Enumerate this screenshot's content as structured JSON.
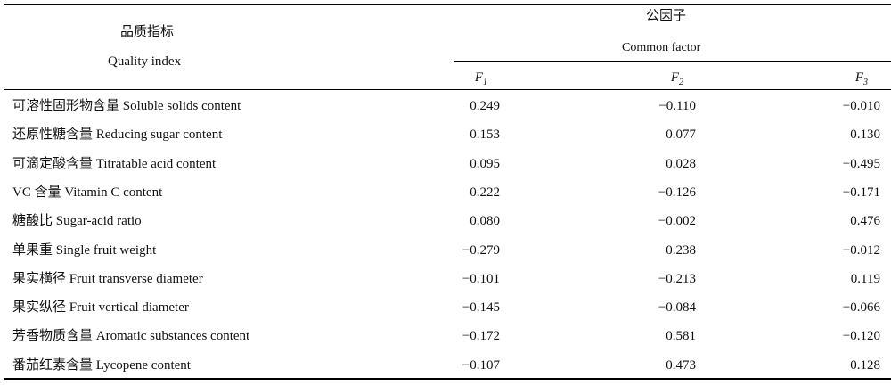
{
  "header": {
    "row_label_zh": "品质指标",
    "row_label_en": "Quality index",
    "group_zh": "公因子",
    "group_en": "Common factor",
    "columns": [
      {
        "letter": "F",
        "sub": "1"
      },
      {
        "letter": "F",
        "sub": "2"
      },
      {
        "letter": "F",
        "sub": "3"
      }
    ]
  },
  "table": {
    "rows": [
      [
        "可溶性固形物含量 Soluble solids content",
        "0.249",
        "−0.110",
        "−0.010"
      ],
      [
        "还原性糖含量 Reducing sugar content",
        "0.153",
        "0.077",
        "0.130"
      ],
      [
        "可滴定酸含量 Titratable acid content",
        "0.095",
        "0.028",
        "−0.495"
      ],
      [
        "VC 含量 Vitamin C content",
        "0.222",
        "−0.126",
        "−0.171"
      ],
      [
        "糖酸比 Sugar-acid ratio",
        "0.080",
        "−0.002",
        "0.476"
      ],
      [
        "单果重 Single fruit weight",
        "−0.279",
        "0.238",
        "−0.012"
      ],
      [
        "果实横径 Fruit transverse diameter",
        "−0.101",
        "−0.213",
        "0.119"
      ],
      [
        "果实纵径 Fruit vertical diameter",
        "−0.145",
        "−0.084",
        "−0.066"
      ],
      [
        "芳香物质含量 Aromatic substances content",
        "−0.172",
        "0.581",
        "−0.120"
      ],
      [
        "番茄红素含量 Lycopene content",
        "−0.107",
        "0.473",
        "0.128"
      ]
    ]
  }
}
